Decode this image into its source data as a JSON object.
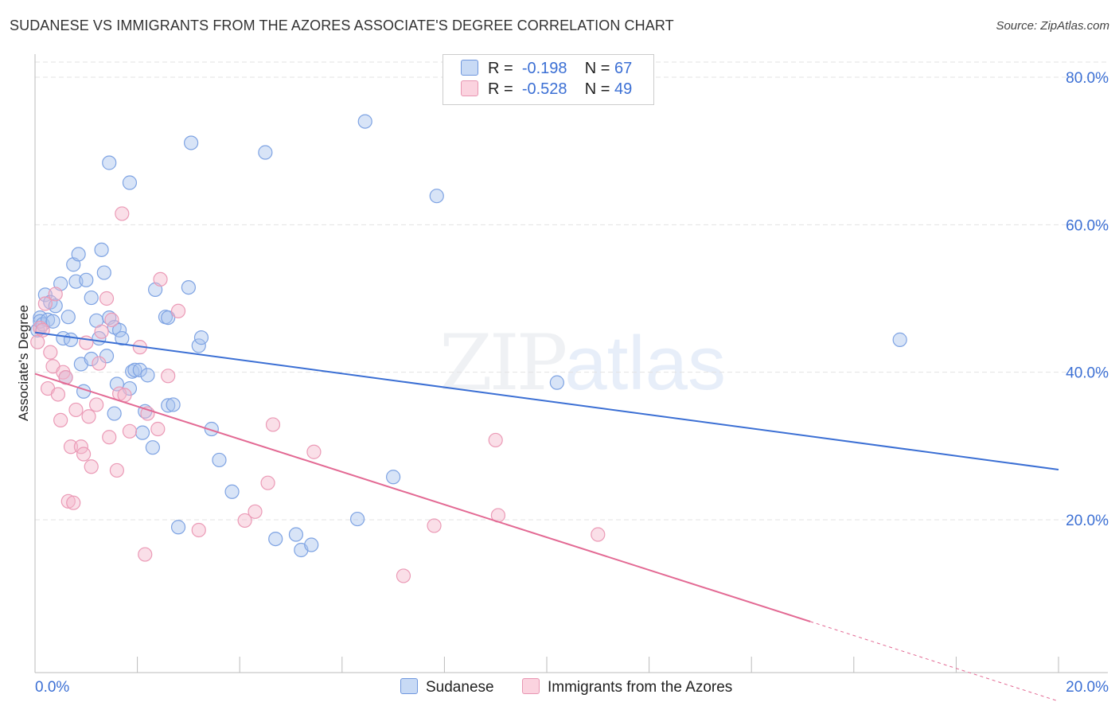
{
  "header": {
    "title": "SUDANESE VS IMMIGRANTS FROM THE AZORES ASSOCIATE'S DEGREE CORRELATION CHART",
    "source": "Source: ZipAtlas.com"
  },
  "watermark": {
    "zip": "ZIP",
    "atlas": "atlas"
  },
  "legend": {
    "series1": {
      "r_label": "R =",
      "r_value": "-0.198",
      "n_label": "N =",
      "n_value": "67"
    },
    "series2": {
      "r_label": "R =",
      "r_value": "-0.528",
      "n_label": "N =",
      "n_value": "49"
    }
  },
  "bottom_legend": {
    "series1": "Sudanese",
    "series2": "Immigrants from the Azores"
  },
  "colors": {
    "blue": "#3b6fd4",
    "blue_fill": "#a9c4ee",
    "pink": "#e36a94",
    "pink_fill": "#f5b8cb",
    "grid": "#e3e3e3"
  },
  "chart_data": {
    "type": "scatter",
    "xlabel": "",
    "ylabel": "Associate's Degree",
    "xlim": [
      0,
      20
    ],
    "ylim": [
      0,
      80
    ],
    "x_tick_labels": [
      "0.0%",
      "20.0%"
    ],
    "y_tick_labels": [
      "20.0%",
      "40.0%",
      "60.0%",
      "80.0%"
    ],
    "y_ticks": [
      20,
      40,
      60,
      80
    ],
    "series": [
      {
        "name": "Sudanese",
        "color": "#3b6fd4",
        "trend": {
          "x": [
            0,
            20
          ],
          "y": [
            45.4,
            26.8
          ]
        },
        "points": [
          [
            0.05,
            45.7
          ],
          [
            0.1,
            47.4
          ],
          [
            0.1,
            46.9
          ],
          [
            0.15,
            46.5
          ],
          [
            0.2,
            50.5
          ],
          [
            0.25,
            47.1
          ],
          [
            0.3,
            49.5
          ],
          [
            0.35,
            46.9
          ],
          [
            0.4,
            49.0
          ],
          [
            0.5,
            52.0
          ],
          [
            0.55,
            44.6
          ],
          [
            0.6,
            39.3
          ],
          [
            0.65,
            47.5
          ],
          [
            0.7,
            44.4
          ],
          [
            0.75,
            54.6
          ],
          [
            0.8,
            52.3
          ],
          [
            0.85,
            56.0
          ],
          [
            0.9,
            41.1
          ],
          [
            0.95,
            37.4
          ],
          [
            1.0,
            52.5
          ],
          [
            1.1,
            41.8
          ],
          [
            1.1,
            50.1
          ],
          [
            1.2,
            47.0
          ],
          [
            1.25,
            44.6
          ],
          [
            1.3,
            56.6
          ],
          [
            1.35,
            53.5
          ],
          [
            1.4,
            42.2
          ],
          [
            1.45,
            47.4
          ],
          [
            1.45,
            68.4
          ],
          [
            1.55,
            46.1
          ],
          [
            1.55,
            34.4
          ],
          [
            1.6,
            38.4
          ],
          [
            1.65,
            45.7
          ],
          [
            1.7,
            44.6
          ],
          [
            1.85,
            65.7
          ],
          [
            1.85,
            37.8
          ],
          [
            1.9,
            40.1
          ],
          [
            1.95,
            40.3
          ],
          [
            2.05,
            40.3
          ],
          [
            2.1,
            31.8
          ],
          [
            2.15,
            34.7
          ],
          [
            2.2,
            39.6
          ],
          [
            2.3,
            29.8
          ],
          [
            2.35,
            51.2
          ],
          [
            2.55,
            47.5
          ],
          [
            2.6,
            47.4
          ],
          [
            2.6,
            35.5
          ],
          [
            2.7,
            35.6
          ],
          [
            2.8,
            19.0
          ],
          [
            3.0,
            51.5
          ],
          [
            3.05,
            71.1
          ],
          [
            3.2,
            43.6
          ],
          [
            3.25,
            44.7
          ],
          [
            3.45,
            32.3
          ],
          [
            3.6,
            28.1
          ],
          [
            3.85,
            23.8
          ],
          [
            4.5,
            69.8
          ],
          [
            4.7,
            17.4
          ],
          [
            5.1,
            18.0
          ],
          [
            5.2,
            15.9
          ],
          [
            5.4,
            16.6
          ],
          [
            6.3,
            20.1
          ],
          [
            6.45,
            74.0
          ],
          [
            7.0,
            25.8
          ],
          [
            7.85,
            63.9
          ],
          [
            10.2,
            38.6
          ],
          [
            16.9,
            44.4
          ]
        ]
      },
      {
        "name": "Immigrants from the Azores",
        "color": "#e36a94",
        "trend": {
          "x": [
            0,
            15.15
          ],
          "y": [
            39.8,
            6.2
          ]
        },
        "trend_dash": {
          "x": [
            15.15,
            20
          ],
          "y": [
            6.2,
            -4.6
          ]
        },
        "points": [
          [
            0.05,
            44.1
          ],
          [
            0.1,
            46.0
          ],
          [
            0.15,
            45.7
          ],
          [
            0.2,
            49.3
          ],
          [
            0.25,
            37.8
          ],
          [
            0.3,
            42.7
          ],
          [
            0.35,
            40.8
          ],
          [
            0.4,
            50.6
          ],
          [
            0.45,
            37.0
          ],
          [
            0.5,
            33.5
          ],
          [
            0.55,
            40.0
          ],
          [
            0.6,
            39.3
          ],
          [
            0.65,
            22.5
          ],
          [
            0.7,
            29.9
          ],
          [
            0.75,
            22.3
          ],
          [
            0.8,
            34.9
          ],
          [
            0.9,
            29.9
          ],
          [
            0.95,
            28.9
          ],
          [
            1.0,
            44.0
          ],
          [
            1.05,
            34.0
          ],
          [
            1.1,
            27.2
          ],
          [
            1.2,
            35.6
          ],
          [
            1.25,
            41.2
          ],
          [
            1.3,
            45.5
          ],
          [
            1.4,
            50.0
          ],
          [
            1.45,
            31.2
          ],
          [
            1.5,
            47.1
          ],
          [
            1.6,
            26.7
          ],
          [
            1.65,
            37.1
          ],
          [
            1.7,
            61.5
          ],
          [
            1.75,
            36.9
          ],
          [
            1.85,
            32.0
          ],
          [
            2.05,
            43.4
          ],
          [
            2.15,
            15.3
          ],
          [
            2.2,
            34.4
          ],
          [
            2.4,
            32.3
          ],
          [
            2.45,
            52.6
          ],
          [
            2.6,
            39.5
          ],
          [
            2.8,
            48.3
          ],
          [
            3.2,
            18.6
          ],
          [
            4.1,
            19.9
          ],
          [
            4.3,
            21.1
          ],
          [
            4.55,
            25.0
          ],
          [
            4.65,
            32.9
          ],
          [
            5.45,
            29.2
          ],
          [
            7.2,
            12.4
          ],
          [
            7.8,
            19.2
          ],
          [
            9.0,
            30.8
          ],
          [
            9.05,
            20.6
          ],
          [
            11.0,
            18.0
          ]
        ]
      }
    ]
  }
}
